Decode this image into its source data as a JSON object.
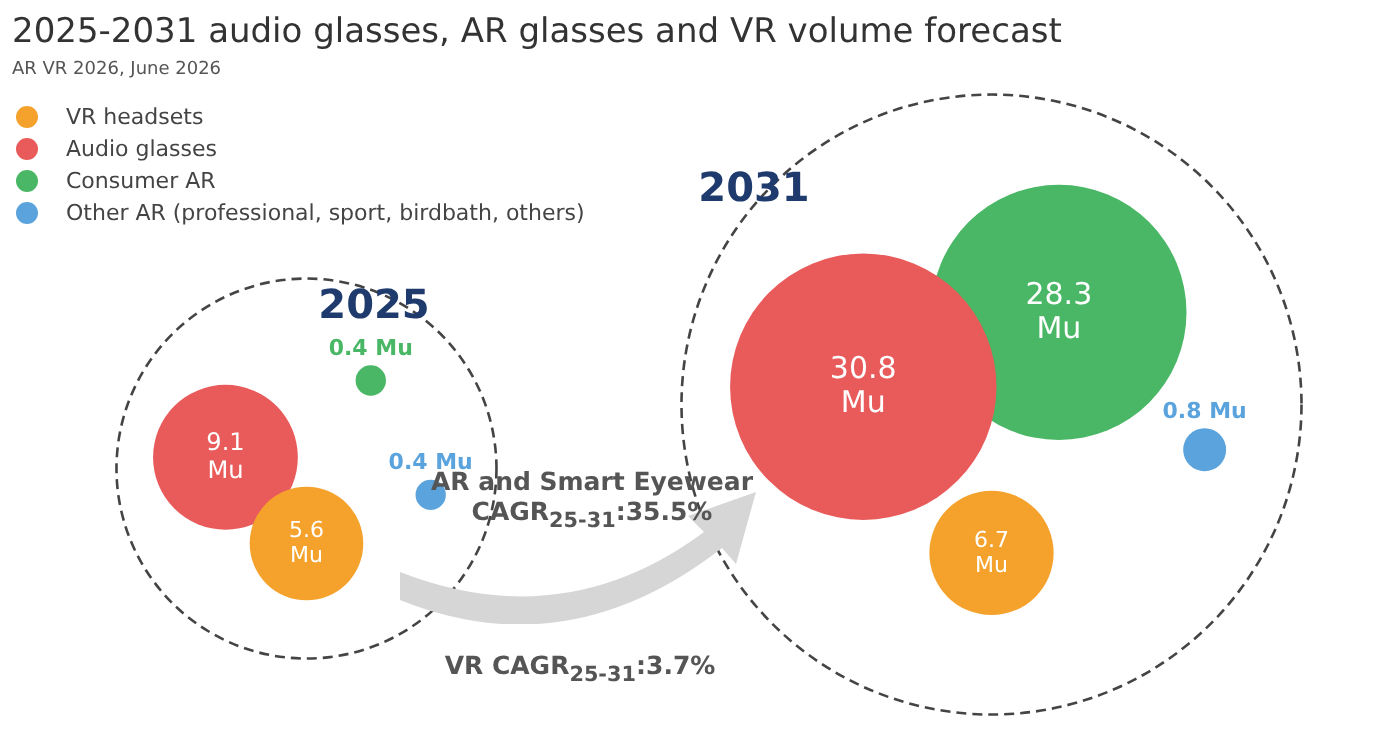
{
  "chart_data": {
    "type": "other",
    "title": "2025-2031 audio glasses, AR glasses and VR volume forecast",
    "subtitle": "AR VR 2026, June 2026",
    "categories": [
      "2025",
      "2031"
    ],
    "series": [
      {
        "name": "VR headsets",
        "color": "#f5a22d",
        "values": [
          5.6,
          6.7
        ],
        "value_labels": [
          "5.6 Mu",
          "6.7 Mu"
        ]
      },
      {
        "name": "Audio glasses",
        "color": "#e95b5a",
        "values": [
          9.1,
          30.8
        ],
        "value_labels": [
          "9.1 Mu",
          "30.8 Mu"
        ]
      },
      {
        "name": "Consumer AR",
        "color": "#49b765",
        "values": [
          0.4,
          28.3
        ],
        "value_labels": [
          "0.4 Mu",
          "28.3 Mu"
        ]
      },
      {
        "name": "Other AR (professional, sport, birdbath, others)",
        "color": "#5ba3dc",
        "values": [
          0.4,
          0.8
        ],
        "value_labels": [
          "0.4 Mu",
          "0.8 Mu"
        ]
      }
    ],
    "annotations": [
      "AR and Smart Eyewear CAGR$_{25-31}$:35.5%",
      "VR CAGR$_{25-31}$:3.7%"
    ],
    "legend": "top left"
  }
}
